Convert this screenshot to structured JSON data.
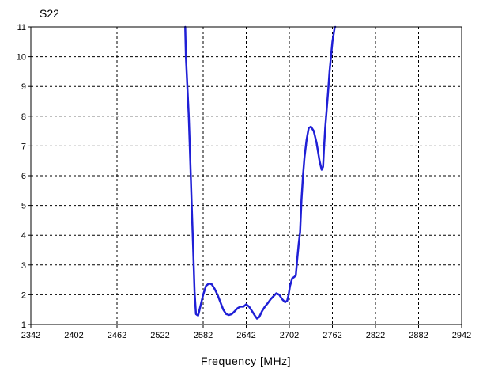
{
  "chart_data": {
    "type": "line",
    "title": "S22",
    "xlabel": "Frequency [MHz]",
    "ylabel": "",
    "xlim": [
      2342,
      2942
    ],
    "ylim": [
      1,
      11
    ],
    "xticks": [
      2342,
      2402,
      2462,
      2522,
      2582,
      2642,
      2702,
      2762,
      2822,
      2882,
      2942
    ],
    "yticks": [
      1,
      2,
      3,
      4,
      5,
      6,
      7,
      8,
      9,
      10,
      11
    ],
    "grid": true,
    "series": [
      {
        "color": "#1f1fd6",
        "x": [
          2557,
          2558,
          2562,
          2564,
          2566,
          2568,
          2570,
          2572,
          2575,
          2578,
          2582,
          2586,
          2590,
          2594,
          2598,
          2602,
          2606,
          2610,
          2614,
          2618,
          2622,
          2626,
          2630,
          2634,
          2638,
          2642,
          2646,
          2650,
          2654,
          2657,
          2660,
          2664,
          2668,
          2672,
          2676,
          2680,
          2684,
          2688,
          2692,
          2696,
          2699,
          2701,
          2703,
          2706,
          2709,
          2711,
          2713,
          2715,
          2717,
          2719,
          2721,
          2723,
          2726,
          2729,
          2732,
          2736,
          2740,
          2744,
          2747,
          2749,
          2750,
          2752,
          2754,
          2756,
          2758,
          2760,
          2762,
          2764,
          2765,
          2766
        ],
        "y": [
          11.0,
          10.0,
          8.0,
          6.5,
          5.0,
          3.6,
          2.1,
          1.35,
          1.3,
          1.6,
          2.0,
          2.3,
          2.38,
          2.35,
          2.2,
          2.0,
          1.75,
          1.5,
          1.35,
          1.32,
          1.35,
          1.45,
          1.55,
          1.6,
          1.6,
          1.68,
          1.6,
          1.45,
          1.3,
          1.2,
          1.25,
          1.45,
          1.6,
          1.72,
          1.85,
          1.95,
          2.05,
          2.0,
          1.85,
          1.75,
          1.8,
          2.0,
          2.3,
          2.55,
          2.6,
          2.65,
          3.2,
          3.7,
          4.1,
          5.2,
          6.0,
          6.6,
          7.2,
          7.6,
          7.65,
          7.5,
          7.1,
          6.5,
          6.2,
          6.3,
          6.8,
          7.6,
          8.2,
          8.8,
          9.5,
          10.0,
          10.5,
          10.8,
          10.95,
          11.0
        ]
      }
    ]
  }
}
